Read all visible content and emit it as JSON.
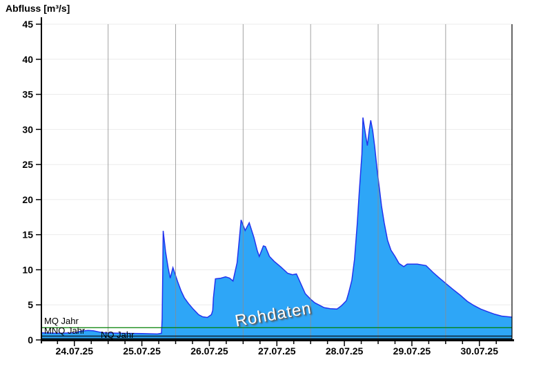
{
  "chart_data": {
    "type": "area",
    "title": "Abfluss [m³/s]",
    "watermark": "Rohdaten",
    "ylim": [
      0,
      45
    ],
    "y_ticks": [
      0,
      5,
      10,
      15,
      20,
      25,
      30,
      35,
      40,
      45
    ],
    "x_days": [
      "24.07.25",
      "25.07.25",
      "26.07.25",
      "27.07.25",
      "28.07.25",
      "29.07.25",
      "30.07.25"
    ],
    "x_range_days": [
      0.02,
      6.98
    ],
    "grid": "on",
    "reference_lines": [
      {
        "label": "MQ Jahr",
        "value": 1.75,
        "color": "#007f00"
      },
      {
        "label": "MNQ Jahr",
        "value": 0.55,
        "color": "#000000"
      },
      {
        "label": "NQ Jahr",
        "value": 0.2,
        "color": "#000000"
      }
    ],
    "colors": {
      "fill": "#2ea6f7",
      "stroke": "#2233ee",
      "grid_h": "#ebebeb",
      "grid_v": "#8c8c8c",
      "axis": "#000000"
    },
    "series": [
      {
        "name": "Rohdaten",
        "unit": "m³/s",
        "points": [
          [
            0.02,
            1.0
          ],
          [
            0.25,
            0.95
          ],
          [
            0.5,
            1.0
          ],
          [
            0.6,
            1.25
          ],
          [
            0.7,
            1.35
          ],
          [
            0.78,
            1.3
          ],
          [
            0.88,
            1.1
          ],
          [
            0.95,
            1.0
          ],
          [
            1.2,
            0.95
          ],
          [
            1.5,
            0.92
          ],
          [
            1.73,
            0.85
          ],
          [
            1.79,
            0.95
          ],
          [
            1.8,
            3.0
          ],
          [
            1.81,
            10.0
          ],
          [
            1.816,
            15.55
          ],
          [
            1.85,
            12.6
          ],
          [
            1.89,
            10.2
          ],
          [
            1.92,
            8.8
          ],
          [
            1.96,
            10.3
          ],
          [
            2.03,
            8.3
          ],
          [
            2.08,
            7.0
          ],
          [
            2.13,
            6.0
          ],
          [
            2.19,
            5.2
          ],
          [
            2.26,
            4.4
          ],
          [
            2.34,
            3.6
          ],
          [
            2.4,
            3.3
          ],
          [
            2.47,
            3.2
          ],
          [
            2.53,
            3.6
          ],
          [
            2.55,
            4.2
          ],
          [
            2.56,
            6.0
          ],
          [
            2.59,
            8.7
          ],
          [
            2.67,
            8.8
          ],
          [
            2.74,
            9.0
          ],
          [
            2.8,
            8.8
          ],
          [
            2.85,
            8.4
          ],
          [
            2.91,
            11.0
          ],
          [
            2.94,
            14.0
          ],
          [
            2.97,
            17.1
          ],
          [
            3.03,
            15.6
          ],
          [
            3.09,
            16.7
          ],
          [
            3.16,
            14.6
          ],
          [
            3.21,
            12.7
          ],
          [
            3.24,
            11.9
          ],
          [
            3.3,
            13.4
          ],
          [
            3.33,
            13.3
          ],
          [
            3.39,
            11.9
          ],
          [
            3.46,
            11.2
          ],
          [
            3.56,
            10.4
          ],
          [
            3.66,
            9.5
          ],
          [
            3.73,
            9.3
          ],
          [
            3.79,
            9.4
          ],
          [
            3.86,
            7.9
          ],
          [
            3.92,
            6.6
          ],
          [
            4.0,
            5.8
          ],
          [
            4.06,
            5.3
          ],
          [
            4.12,
            5.0
          ],
          [
            4.2,
            4.6
          ],
          [
            4.29,
            4.45
          ],
          [
            4.39,
            4.4
          ],
          [
            4.46,
            4.9
          ],
          [
            4.53,
            5.6
          ],
          [
            4.56,
            6.6
          ],
          [
            4.61,
            8.5
          ],
          [
            4.65,
            11.5
          ],
          [
            4.69,
            16.5
          ],
          [
            4.72,
            21.0
          ],
          [
            4.76,
            26.5
          ],
          [
            4.775,
            31.7
          ],
          [
            4.81,
            29.5
          ],
          [
            4.84,
            27.7
          ],
          [
            4.87,
            30.0
          ],
          [
            4.89,
            31.3
          ],
          [
            4.92,
            29.8
          ],
          [
            4.95,
            27.5
          ],
          [
            4.99,
            23.8
          ],
          [
            5.02,
            21.5
          ],
          [
            5.05,
            19.1
          ],
          [
            5.09,
            16.7
          ],
          [
            5.14,
            14.2
          ],
          [
            5.19,
            12.8
          ],
          [
            5.25,
            11.9
          ],
          [
            5.31,
            10.9
          ],
          [
            5.38,
            10.45
          ],
          [
            5.43,
            10.8
          ],
          [
            5.58,
            10.8
          ],
          [
            5.71,
            10.6
          ],
          [
            5.81,
            9.65
          ],
          [
            5.91,
            8.8
          ],
          [
            6.01,
            8.0
          ],
          [
            6.11,
            7.2
          ],
          [
            6.22,
            6.35
          ],
          [
            6.32,
            5.5
          ],
          [
            6.42,
            4.9
          ],
          [
            6.52,
            4.4
          ],
          [
            6.63,
            4.0
          ],
          [
            6.73,
            3.65
          ],
          [
            6.83,
            3.4
          ],
          [
            6.93,
            3.3
          ],
          [
            6.98,
            3.25
          ]
        ]
      }
    ]
  }
}
